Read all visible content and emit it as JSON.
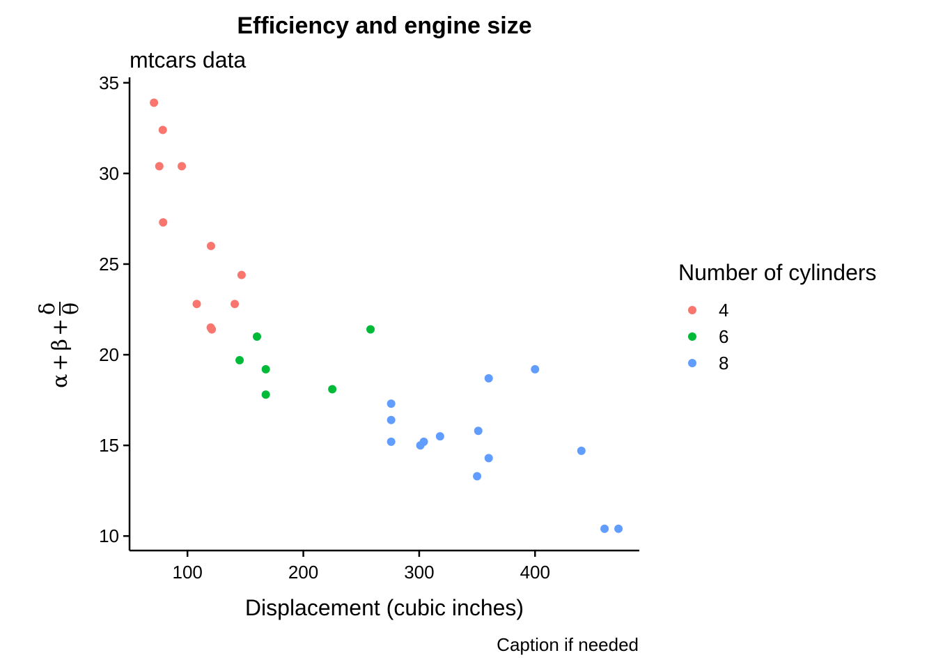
{
  "chart_data": {
    "type": "scatter",
    "title": "Efficiency and engine size",
    "subtitle": "mtcars data",
    "xlabel": "Displacement (cubic inches)",
    "ylabel": {
      "alpha": "α",
      "beta": "β",
      "plus": "+",
      "delta": "δ",
      "theta": "θ"
    },
    "caption": "Caption if needed",
    "xlim": [
      50,
      490
    ],
    "ylim": [
      9.2,
      35.3
    ],
    "x_ticks": [
      100,
      200,
      300,
      400
    ],
    "y_ticks": [
      10,
      15,
      20,
      25,
      30,
      35
    ],
    "grid": false,
    "legend": {
      "title": "Number of cylinders",
      "placement": "right"
    },
    "series": [
      {
        "name": "4",
        "color": "#F8766D",
        "points": [
          [
            71.1,
            33.9
          ],
          [
            78.7,
            32.4
          ],
          [
            75.7,
            30.4
          ],
          [
            95.1,
            30.4
          ],
          [
            79.0,
            27.3
          ],
          [
            120.3,
            26.0
          ],
          [
            146.7,
            24.4
          ],
          [
            108.0,
            22.8
          ],
          [
            140.8,
            22.8
          ],
          [
            120.1,
            21.5
          ],
          [
            121.0,
            21.4
          ]
        ]
      },
      {
        "name": "6",
        "color": "#00BA38",
        "points": [
          [
            258.0,
            21.4
          ],
          [
            160.0,
            21.0
          ],
          [
            145.0,
            19.7
          ],
          [
            167.6,
            19.2
          ],
          [
            167.6,
            17.8
          ],
          [
            225.0,
            18.1
          ]
        ]
      },
      {
        "name": "8",
        "color": "#619CFF",
        "points": [
          [
            275.8,
            17.3
          ],
          [
            275.8,
            16.4
          ],
          [
            275.8,
            15.2
          ],
          [
            301.0,
            15.0
          ],
          [
            304.0,
            15.2
          ],
          [
            318.0,
            15.5
          ],
          [
            351.0,
            15.8
          ],
          [
            360.0,
            18.7
          ],
          [
            400.0,
            19.2
          ],
          [
            360.0,
            14.3
          ],
          [
            350.0,
            13.3
          ],
          [
            440.0,
            14.7
          ],
          [
            460.0,
            10.4
          ],
          [
            472.0,
            10.4
          ]
        ]
      }
    ]
  }
}
